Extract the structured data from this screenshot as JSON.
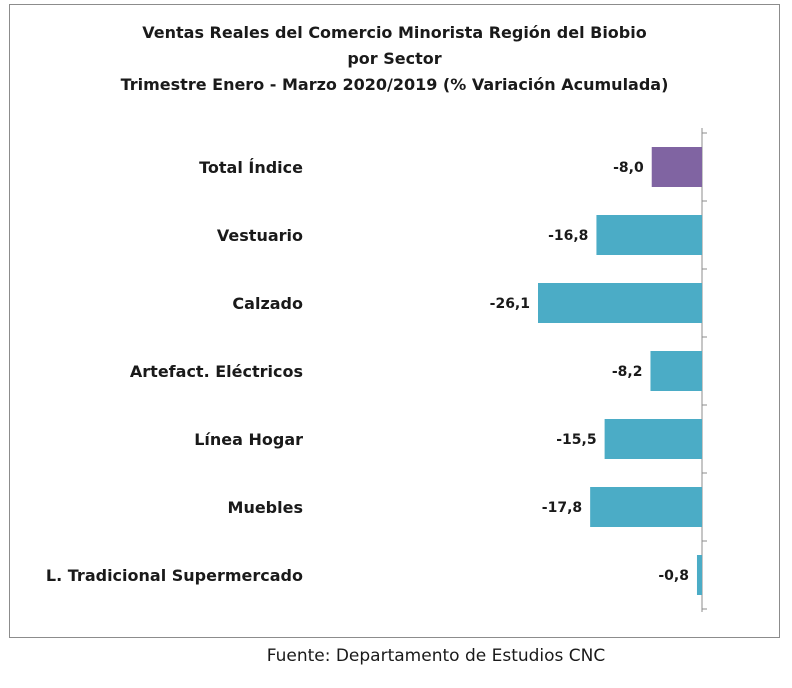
{
  "chart_data": {
    "type": "bar",
    "orientation": "horizontal",
    "title_lines": [
      "Ventas Reales del Comercio Minorista Región del Biobio",
      "por Sector",
      "Trimestre Enero - Marzo 2020/2019 (% Variación Acumulada)"
    ],
    "categories": [
      "Total Índice",
      "Vestuario",
      "Calzado",
      "Artefact. Eléctricos",
      "Línea Hogar",
      "Muebles",
      "L. Tradicional Supermercado"
    ],
    "values": [
      -8.0,
      -16.8,
      -26.1,
      -8.2,
      -15.5,
      -17.8,
      -0.8
    ],
    "value_labels": [
      "-8,0",
      "-16,8",
      "-26,1",
      "-8,2",
      "-15,5",
      "-17,8",
      "-0,8"
    ],
    "colors": [
      "#8064a2",
      "#4bacc6",
      "#4bacc6",
      "#4bacc6",
      "#4bacc6",
      "#4bacc6",
      "#4bacc6"
    ],
    "xlim": [
      -26.1,
      0
    ],
    "grid": false,
    "legend": "none"
  },
  "footer": {
    "source": "Fuente: Departamento de Estudios CNC"
  }
}
